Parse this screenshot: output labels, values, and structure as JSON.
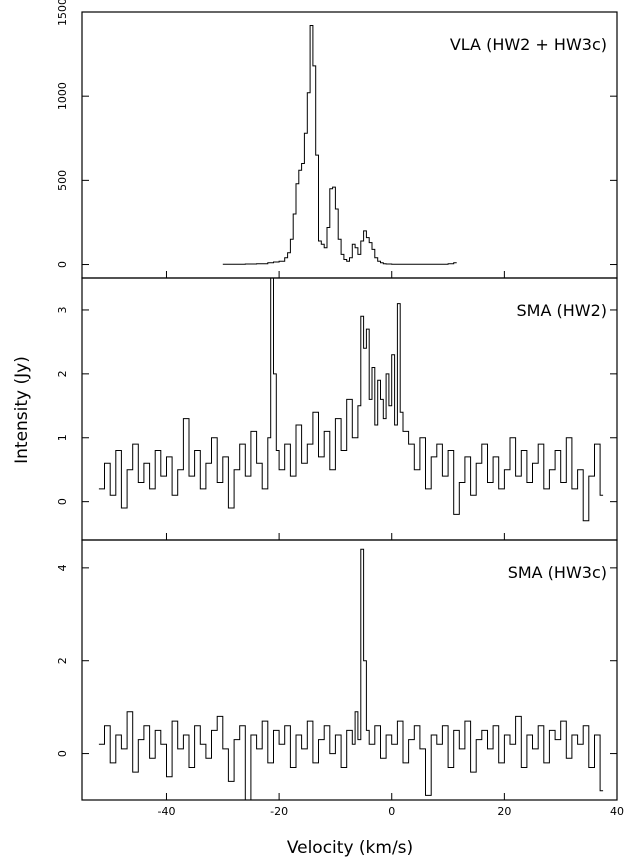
{
  "chart_data": [
    {
      "type": "line",
      "label": "VLA (HW2 + HW3c)",
      "xlim": [
        -55,
        40
      ],
      "ylim": [
        -80,
        1500
      ],
      "yticks": [
        0,
        500,
        1000,
        1500
      ],
      "ytick_labels": [
        "0",
        "500",
        "1000",
        "1500"
      ],
      "series": [
        {
          "x": [
            -30,
            -28,
            -26,
            -24,
            -22,
            -21,
            -20,
            -19,
            -18.5,
            -18,
            -17.5,
            -17,
            -16.5,
            -16,
            -15.5,
            -15,
            -14.5,
            -14,
            -13.5,
            -13,
            -12.5,
            -12,
            -11.5,
            -11,
            -10.5,
            -10,
            -9.5,
            -9,
            -8.5,
            -8,
            -7.5,
            -7,
            -6.5,
            -6,
            -5.5,
            -5,
            -4.5,
            -4,
            -3.5,
            -3,
            -2.5,
            -2,
            -1.5,
            -1,
            0,
            2,
            4,
            6,
            8,
            10,
            11
          ],
          "y": [
            2,
            2,
            3,
            5,
            10,
            15,
            20,
            40,
            70,
            150,
            300,
            480,
            560,
            600,
            780,
            1020,
            1420,
            1180,
            650,
            140,
            120,
            100,
            220,
            450,
            460,
            330,
            150,
            60,
            30,
            20,
            40,
            120,
            100,
            60,
            140,
            200,
            160,
            130,
            90,
            40,
            20,
            10,
            5,
            3,
            2,
            2,
            2,
            2,
            2,
            5,
            10
          ]
        }
      ]
    },
    {
      "type": "line",
      "label": "SMA (HW2)",
      "xlim": [
        -55,
        40
      ],
      "ylim": [
        -0.6,
        3.5
      ],
      "yticks": [
        0,
        1,
        2,
        3
      ],
      "ytick_labels": [
        "0",
        "1",
        "2",
        "3"
      ],
      "series": [
        {
          "x": [
            -52,
            -51,
            -50,
            -49,
            -48,
            -47,
            -46,
            -45,
            -44,
            -43,
            -42,
            -41,
            -40,
            -39,
            -38,
            -37,
            -36,
            -35,
            -34,
            -33,
            -32,
            -31,
            -30,
            -29,
            -28,
            -27,
            -26,
            -25,
            -24,
            -23,
            -22,
            -21.5,
            -21,
            -20.5,
            -20,
            -19,
            -18,
            -17,
            -16,
            -15,
            -14,
            -13,
            -12,
            -11,
            -10,
            -9,
            -8,
            -7,
            -6,
            -5.5,
            -5,
            -4.5,
            -4,
            -3.5,
            -3,
            -2.5,
            -2,
            -1.5,
            -1,
            -0.5,
            0,
            0.5,
            1,
            1.5,
            2,
            3,
            4,
            5,
            6,
            7,
            8,
            9,
            10,
            11,
            12,
            13,
            14,
            15,
            16,
            17,
            18,
            19,
            20,
            21,
            22,
            23,
            24,
            25,
            26,
            27,
            28,
            29,
            30,
            31,
            32,
            33,
            34,
            35,
            36,
            37
          ],
          "y": [
            0.2,
            0.6,
            0.1,
            0.8,
            -0.1,
            0.5,
            0.9,
            0.3,
            0.6,
            0.2,
            0.8,
            0.4,
            0.7,
            0.1,
            0.5,
            1.3,
            0.4,
            0.8,
            0.2,
            0.6,
            1.0,
            0.3,
            0.7,
            -0.1,
            0.5,
            0.9,
            0.4,
            1.1,
            0.6,
            0.2,
            1.0,
            3.5,
            2.0,
            0.8,
            0.5,
            0.9,
            0.4,
            1.2,
            0.6,
            0.9,
            1.4,
            0.7,
            1.1,
            0.5,
            1.3,
            0.8,
            1.6,
            1.0,
            1.5,
            2.9,
            2.4,
            2.7,
            1.6,
            2.1,
            1.2,
            1.9,
            1.6,
            1.3,
            2.0,
            1.5,
            2.3,
            1.2,
            3.1,
            1.4,
            1.1,
            0.9,
            0.5,
            1.0,
            0.2,
            0.7,
            0.9,
            0.4,
            0.8,
            -0.2,
            0.3,
            0.7,
            0.1,
            0.6,
            0.9,
            0.3,
            0.7,
            0.2,
            0.5,
            1.0,
            0.4,
            0.8,
            0.3,
            0.6,
            0.9,
            0.2,
            0.5,
            0.8,
            0.3,
            1.0,
            0.2,
            0.5,
            -0.3,
            0.4,
            0.9,
            0.1
          ]
        }
      ]
    },
    {
      "type": "line",
      "label": "SMA (HW3c)",
      "xlim": [
        -55,
        40
      ],
      "ylim": [
        -1,
        4.6
      ],
      "yticks": [
        0,
        2,
        4
      ],
      "ytick_labels": [
        "0",
        "2",
        "4"
      ],
      "xticks": [
        -40,
        -20,
        0,
        20,
        40
      ],
      "xtick_labels": [
        "-40",
        "-20",
        "0",
        "20",
        "40"
      ],
      "series": [
        {
          "x": [
            -52,
            -51,
            -50,
            -49,
            -48,
            -47,
            -46,
            -45,
            -44,
            -43,
            -42,
            -41,
            -40,
            -39,
            -38,
            -37,
            -36,
            -35,
            -34,
            -33,
            -32,
            -31,
            -30,
            -29,
            -28,
            -27,
            -26,
            -25,
            -24,
            -23,
            -22,
            -21,
            -20,
            -19,
            -18,
            -17,
            -16,
            -15,
            -14,
            -13,
            -12,
            -11,
            -10,
            -9,
            -8,
            -7,
            -6.5,
            -6,
            -5.5,
            -5,
            -4.5,
            -4,
            -3,
            -2,
            -1,
            0,
            1,
            2,
            3,
            4,
            5,
            6,
            7,
            8,
            9,
            10,
            11,
            12,
            13,
            14,
            15,
            16,
            17,
            18,
            19,
            20,
            21,
            22,
            23,
            24,
            25,
            26,
            27,
            28,
            29,
            30,
            31,
            32,
            33,
            34,
            35,
            36,
            37
          ],
          "y": [
            0.2,
            0.6,
            -0.2,
            0.4,
            0.1,
            0.9,
            -0.4,
            0.3,
            0.6,
            -0.1,
            0.5,
            0.2,
            -0.5,
            0.7,
            0.1,
            0.4,
            -0.3,
            0.6,
            0.2,
            -0.1,
            0.5,
            0.8,
            0.1,
            -0.6,
            0.3,
            0.6,
            -1.0,
            0.4,
            0.1,
            0.7,
            -0.2,
            0.5,
            0.2,
            0.6,
            -0.3,
            0.4,
            0.1,
            0.7,
            -0.2,
            0.3,
            0.6,
            0.0,
            0.4,
            -0.3,
            0.5,
            0.2,
            0.9,
            0.3,
            4.4,
            2.0,
            0.5,
            0.2,
            0.6,
            -0.1,
            0.4,
            0.2,
            0.7,
            -0.2,
            0.3,
            0.6,
            0.1,
            -0.9,
            0.4,
            0.2,
            0.6,
            -0.3,
            0.5,
            0.1,
            0.7,
            -0.4,
            0.3,
            0.5,
            0.1,
            0.6,
            -0.2,
            0.4,
            0.2,
            0.8,
            -0.3,
            0.4,
            0.1,
            0.6,
            -0.2,
            0.5,
            0.3,
            0.7,
            -0.1,
            0.4,
            0.2,
            0.6,
            -0.3,
            0.4,
            -0.8
          ]
        }
      ]
    }
  ],
  "axis_titles": {
    "xlabel": "Velocity (km/s)",
    "ylabel": "Intensity (Jy)"
  }
}
